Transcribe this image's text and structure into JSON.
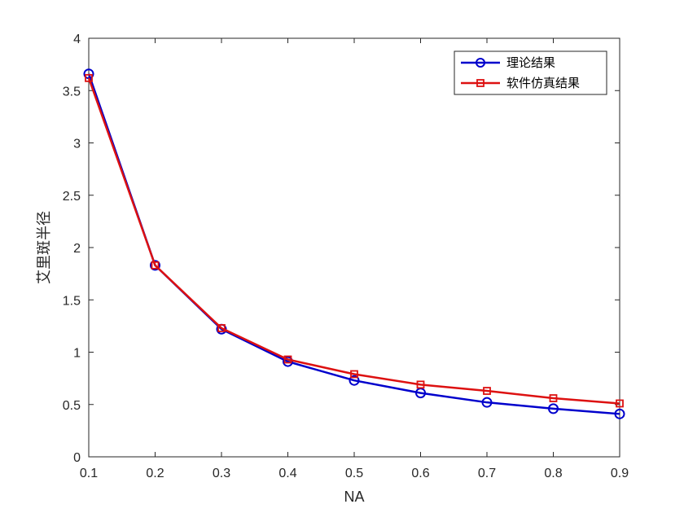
{
  "chart_data": {
    "type": "line",
    "xlabel": "NA",
    "ylabel": "艾里斑半径",
    "xlim": [
      0.1,
      0.9
    ],
    "ylim": [
      0,
      4
    ],
    "x": [
      0.1,
      0.2,
      0.3,
      0.4,
      0.5,
      0.6,
      0.7,
      0.8,
      0.9
    ],
    "xticks": [
      "0.1",
      "0.2",
      "0.3",
      "0.4",
      "0.5",
      "0.6",
      "0.7",
      "0.8",
      "0.9"
    ],
    "yticks": [
      "0",
      "0.5",
      "1",
      "1.5",
      "2",
      "2.5",
      "3",
      "3.5",
      "4"
    ],
    "legend_position": "top-right",
    "grid": false,
    "series": [
      {
        "name": "理论结果",
        "color": "#0000CC",
        "marker": "circle",
        "values": [
          3.66,
          1.83,
          1.22,
          0.91,
          0.73,
          0.61,
          0.52,
          0.46,
          0.41
        ]
      },
      {
        "name": "软件仿真结果",
        "color": "#DD1111",
        "marker": "square",
        "values": [
          3.62,
          1.83,
          1.23,
          0.93,
          0.79,
          0.69,
          0.63,
          0.56,
          0.51
        ]
      }
    ]
  }
}
